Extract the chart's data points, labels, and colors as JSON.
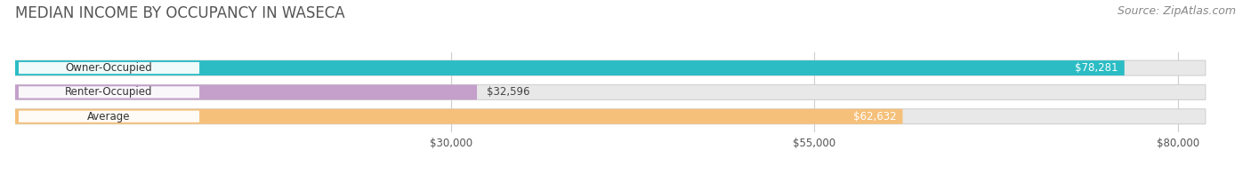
{
  "title": "MEDIAN INCOME BY OCCUPANCY IN WASECA",
  "source": "Source: ZipAtlas.com",
  "categories": [
    "Owner-Occupied",
    "Renter-Occupied",
    "Average"
  ],
  "values": [
    78281,
    32596,
    62632
  ],
  "bar_colors": [
    "#2bbcc4",
    "#c4a0cb",
    "#f5c07a"
  ],
  "value_labels": [
    "$78,281",
    "$32,596",
    "$62,632"
  ],
  "value_label_colors": [
    "white",
    "#555555",
    "white"
  ],
  "x_ticks": [
    30000,
    55000,
    80000
  ],
  "x_tick_labels": [
    "$30,000",
    "$55,000",
    "$80,000"
  ],
  "xlim": [
    0,
    84000
  ],
  "background_color": "#ffffff",
  "bar_bg_color": "#e8e8e8",
  "title_fontsize": 12,
  "source_fontsize": 9,
  "bar_height": 0.62,
  "bar_gap": 0.18
}
